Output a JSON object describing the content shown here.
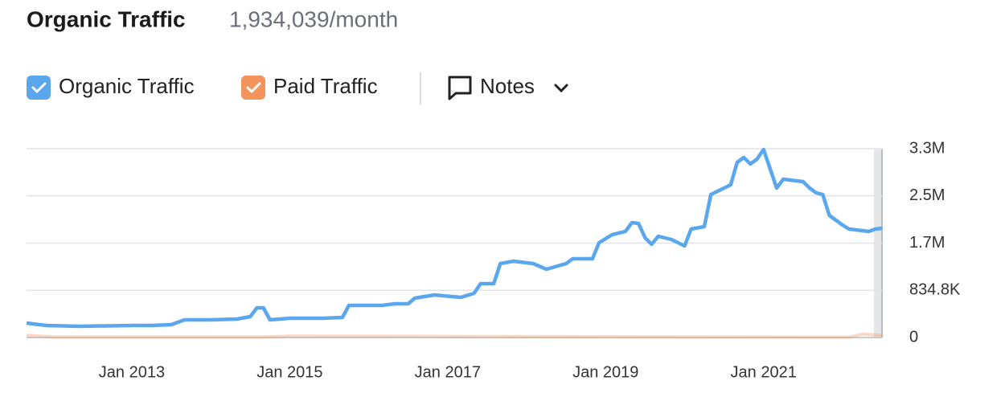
{
  "chart_data": {
    "type": "line",
    "title": "Organic Traffic",
    "subtitle": "1,934,039/month",
    "notes_button": "Notes",
    "xlim": [
      "2011-09",
      "2022-07"
    ],
    "xticks": [
      {
        "value": "2013-01",
        "label": "Jan 2013"
      },
      {
        "value": "2015-01",
        "label": "Jan 2015"
      },
      {
        "value": "2017-01",
        "label": "Jan 2017"
      },
      {
        "value": "2019-01",
        "label": "Jan 2019"
      },
      {
        "value": "2021-01",
        "label": "Jan 2021"
      }
    ],
    "ylim": [
      0,
      3339200
    ],
    "yticks": [
      0,
      {
        "value": 834800,
        "label": "834.8K"
      },
      {
        "value": 1669600,
        "label": "1.7M"
      },
      {
        "value": 2504400,
        "label": "2.5M"
      },
      {
        "value": 3339200,
        "label": "3.3M"
      }
    ],
    "grid": true,
    "series": [
      {
        "name": "Organic Traffic",
        "color": "#5ba7ee",
        "x": [
          "2011-09",
          "2011-12",
          "2012-05",
          "2013-01",
          "2013-04",
          "2013-07",
          "2013-09",
          "2014-01",
          "2014-05",
          "2014-07",
          "2014-08",
          "2014-09",
          "2014-10",
          "2015-01",
          "2015-06",
          "2015-09",
          "2015-10",
          "2016-03",
          "2016-05",
          "2016-07",
          "2016-08",
          "2016-11",
          "2017-03",
          "2017-05",
          "2017-06",
          "2017-08",
          "2017-09",
          "2017-11",
          "2018-02",
          "2018-04",
          "2018-07",
          "2018-08",
          "2018-11",
          "2018-12",
          "2019-02",
          "2019-04",
          "2019-05",
          "2019-06",
          "2019-07",
          "2019-08",
          "2019-09",
          "2019-11",
          "2020-01",
          "2020-02",
          "2020-04",
          "2020-05",
          "2020-07",
          "2020-08",
          "2020-09",
          "2020-10",
          "2020-11",
          "2020-12",
          "2021-01",
          "2021-03",
          "2021-04",
          "2021-07",
          "2021-08",
          "2021-09",
          "2021-10",
          "2021-11",
          "2022-01",
          "2022-02",
          "2022-04",
          "2022-05",
          "2022-06",
          "2022-07"
        ],
        "values": [
          256000,
          213000,
          199000,
          213000,
          213000,
          227000,
          313000,
          313000,
          327000,
          370000,
          526000,
          526000,
          313000,
          341000,
          341000,
          355000,
          568000,
          568000,
          597000,
          597000,
          696000,
          753000,
          710000,
          781000,
          952000,
          952000,
          1307000,
          1350000,
          1307000,
          1208000,
          1307000,
          1393000,
          1393000,
          1677000,
          1819000,
          1876000,
          2032000,
          2018000,
          1762000,
          1648000,
          1790000,
          1733000,
          1620000,
          1918000,
          1961000,
          2529000,
          2643000,
          2700000,
          3098000,
          3183000,
          3069000,
          3154000,
          3325000,
          2643000,
          2799000,
          2757000,
          2643000,
          2558000,
          2529000,
          2160000,
          1989000,
          1918000,
          1890000,
          1876000,
          1918000,
          1932000
        ]
      },
      {
        "name": "Paid Traffic",
        "color": "#f2945b",
        "x": [
          "2011-09",
          "2012-01",
          "2014-09",
          "2015-01",
          "2021-09",
          "2022-02",
          "2022-04",
          "2022-07"
        ],
        "values": [
          40000,
          10000,
          10000,
          25000,
          5000,
          5000,
          60000,
          40000
        ]
      }
    ]
  }
}
